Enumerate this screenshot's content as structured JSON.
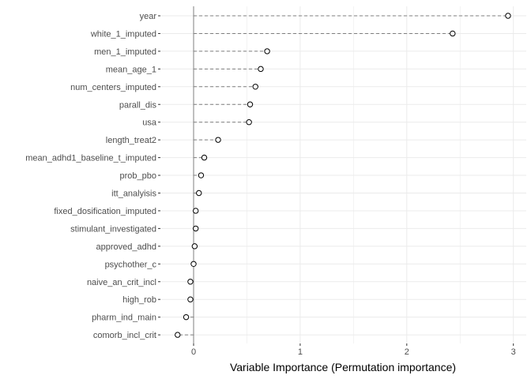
{
  "chart_data": {
    "type": "scatter",
    "subtype": "lollipop",
    "orientation": "horizontal",
    "title": "",
    "xlabel": "Variable Importance (Permutation importance)",
    "ylabel": "",
    "xlim": [
      -0.22,
      3.05
    ],
    "xticks": [
      0,
      1,
      2,
      3
    ],
    "grid": true,
    "legend": "none",
    "colors": {
      "background": "#ffffff",
      "grid": "#ebebeb",
      "zero_line": "#7f7f7f",
      "segment": "#7f7f7f",
      "point_stroke": "#000000",
      "point_fill": "#ffffff",
      "tick_text": "#4d4d4d",
      "axis_title": "#000000"
    },
    "categories": [
      "year",
      "white_1_imputed",
      "men_1_imputed",
      "mean_age_1",
      "num_centers_imputed",
      "parall_dis",
      "usa",
      "length_treat2",
      "mean_adhd1_baseline_t_imputed",
      "prob_pbo",
      "itt_analyisis",
      "fixed_dosification_imputed",
      "stimulant_investigated",
      "approved_adhd",
      "psychother_c",
      "naive_an_crit_incl",
      "high_rob",
      "pharm_ind_main",
      "comorb_incl_crit"
    ],
    "values": [
      2.95,
      2.43,
      0.69,
      0.63,
      0.58,
      0.53,
      0.52,
      0.23,
      0.1,
      0.07,
      0.05,
      0.02,
      0.02,
      0.01,
      0.0,
      -0.03,
      -0.03,
      -0.07,
      -0.15
    ]
  }
}
